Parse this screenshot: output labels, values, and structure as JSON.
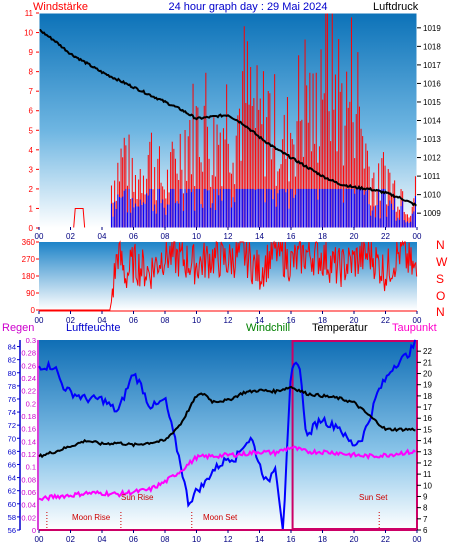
{
  "header": {
    "left": "Windstärke",
    "center": "24 hour graph day : 29 Mai 2024",
    "right": "Luftdruck"
  },
  "wind_dir_labels": [
    "N",
    "W",
    "S",
    "O",
    "N"
  ],
  "bottom_header": {
    "regen": "Regen",
    "luftfeuchte": "Luftfeuchte",
    "windchill": "Windchill",
    "temperatur": "Temperatur",
    "taupunkt": "Taupunkt"
  },
  "events": {
    "moon_rise": "Moon Rise",
    "sun_rise": "Sun Rise",
    "moon_set": "Moon Set",
    "sun_set": "Sun Set"
  },
  "colors": {
    "wind_speed": "#ff0000",
    "wind_gust_low": "#0000ff",
    "pressure": "#000000",
    "wind_dir": "#ff0000",
    "humidity": "#0000ff",
    "temperature": "#000000",
    "dewpoint": "#ff00ff",
    "rain_box": "#cc0066",
    "label_text": "#000080"
  },
  "chart_data": [
    {
      "type": "line",
      "series": [
        {
          "name": "Windstärke",
          "axis": "left",
          "x": [
            0,
            4,
            4.5,
            5,
            5.5,
            6,
            6.5,
            7,
            7.5,
            8,
            8.5,
            9,
            9.5,
            10,
            10.5,
            11,
            11.5,
            12,
            12.5,
            13,
            13.5,
            14,
            14.5,
            15,
            15.5,
            16,
            16.5,
            17,
            17.5,
            18,
            18.5,
            19,
            19.5,
            20,
            20.5,
            21,
            21.5,
            22,
            22.5,
            23,
            23.5,
            24
          ],
          "values": [
            0,
            0,
            2,
            3,
            4,
            2,
            3,
            4,
            3,
            2,
            3,
            4,
            5,
            5,
            6,
            4,
            5,
            6,
            5,
            7,
            6,
            5,
            6,
            5,
            4,
            5,
            6,
            7,
            5,
            9,
            8,
            7,
            6,
            8,
            5,
            3,
            2,
            3,
            2,
            2,
            1,
            2
          ]
        },
        {
          "name": "Luftdruck",
          "axis": "right",
          "x": [
            0,
            1,
            2,
            3,
            4,
            5,
            6,
            7,
            8,
            9,
            10,
            11,
            12,
            13,
            14,
            15,
            16,
            17,
            18,
            19,
            20,
            21,
            22,
            23,
            24
          ],
          "values": [
            1018.9,
            1018.3,
            1017.6,
            1017.1,
            1016.6,
            1016.2,
            1015.8,
            1015.4,
            1015,
            1014.6,
            1014.1,
            1014.2,
            1014.3,
            1013.8,
            1013.1,
            1012.5,
            1012,
            1011.5,
            1011,
            1010.6,
            1010.4,
            1010.3,
            1010.1,
            1009.8,
            1009.4
          ]
        }
      ],
      "x_ticks": [
        "00",
        "02",
        "04",
        "06",
        "08",
        "10",
        "12",
        "14",
        "16",
        "18",
        "20",
        "22",
        "00"
      ],
      "ylim_left": [
        0,
        11
      ],
      "ylim_right": [
        1008.2,
        1019.8
      ],
      "ticks_left": [
        0,
        1,
        2,
        3,
        4,
        5,
        6,
        7,
        8,
        9,
        10,
        11
      ],
      "ticks_right": [
        1009,
        1010,
        1011,
        1012,
        1013,
        1014,
        1015,
        1016,
        1017,
        1018,
        1019
      ]
    },
    {
      "type": "line",
      "series": [
        {
          "name": "Windrichtung",
          "x": [
            0,
            4.5,
            5,
            5.5,
            6,
            7,
            8,
            9,
            10,
            11,
            12,
            13,
            14,
            15,
            16,
            17,
            18,
            19,
            20,
            21,
            22,
            23,
            24
          ],
          "values": [
            0,
            0,
            310,
            180,
            250,
            200,
            300,
            270,
            240,
            280,
            260,
            300,
            200,
            320,
            250,
            300,
            280,
            220,
            260,
            300,
            200,
            320,
            180
          ]
        }
      ],
      "x_ticks": [
        "00",
        "02",
        "04",
        "06",
        "08",
        "10",
        "12",
        "14",
        "16",
        "18",
        "20",
        "22",
        "00"
      ],
      "ylim": [
        0,
        360
      ],
      "ticks": [
        0,
        90,
        180,
        270,
        360
      ]
    },
    {
      "type": "line",
      "series": [
        {
          "name": "Luftfeuchte",
          "axis": "humidity",
          "x": [
            0,
            1,
            1.5,
            2,
            3,
            4,
            5,
            5.5,
            6,
            6.5,
            7,
            7.5,
            8,
            8.5,
            9,
            9.5,
            10,
            10.5,
            11,
            11.5,
            12,
            12.5,
            13,
            13.5,
            14,
            14.5,
            15,
            15.5,
            16,
            16.5,
            17,
            17.5,
            18,
            18.5,
            19,
            19.5,
            20,
            20.5,
            21,
            21.5,
            22,
            22.5,
            23,
            23.5,
            24
          ],
          "values": [
            81,
            81,
            78,
            77,
            76,
            76,
            74,
            77,
            80,
            78,
            75,
            75,
            76,
            71,
            66,
            60,
            62,
            63,
            65,
            66,
            67,
            67,
            69,
            70,
            66,
            63,
            66,
            56,
            80,
            82,
            70,
            72,
            73,
            72,
            72,
            70,
            69,
            70,
            73,
            77,
            79,
            81,
            82,
            83,
            85
          ]
        },
        {
          "name": "Temperatur",
          "axis": "temp",
          "x": [
            0,
            1,
            2,
            3,
            4,
            5,
            6,
            7,
            8,
            9,
            10,
            10.5,
            11,
            12,
            13,
            14,
            15,
            16,
            16.5,
            17,
            18,
            19,
            20,
            21,
            22,
            23,
            24
          ],
          "values": [
            12.6,
            13,
            13.5,
            14,
            13.7,
            13.8,
            13.6,
            13.8,
            14,
            15.5,
            18,
            18.2,
            17.5,
            17.6,
            18.3,
            18.5,
            18.4,
            18.8,
            18.5,
            18.2,
            18,
            17.8,
            17.4,
            16.2,
            15,
            15,
            15
          ]
        },
        {
          "name": "Taupunkt",
          "axis": "temp",
          "x": [
            0,
            1,
            2,
            3,
            4,
            5,
            6,
            7,
            8,
            9,
            10,
            11,
            12,
            13,
            14,
            15,
            16,
            16.5,
            17,
            18,
            19,
            20,
            21,
            22,
            23,
            24
          ],
          "values": [
            8.7,
            9,
            9.1,
            9.3,
            9.3,
            9.2,
            9.4,
            9.6,
            10.3,
            11.3,
            12.5,
            12.6,
            12.7,
            12.8,
            13,
            12.9,
            13.4,
            13.2,
            13,
            13,
            12.9,
            12.7,
            12.6,
            12.7,
            12.9,
            13
          ]
        }
      ],
      "x_ticks": [
        "00",
        "02",
        "04",
        "06",
        "08",
        "10",
        "12",
        "14",
        "16",
        "18",
        "20",
        "22",
        "00"
      ],
      "ylim_humidity": [
        56,
        85
      ],
      "ticks_humidity": [
        56,
        58,
        60,
        62,
        64,
        66,
        68,
        70,
        72,
        74,
        76,
        78,
        80,
        82,
        84
      ],
      "ylim_rain": [
        0,
        0.3
      ],
      "ticks_rain": [
        0,
        0.02,
        0.04,
        0.06,
        0.08,
        0.1,
        0.12,
        0.14,
        0.16,
        0.18,
        0.2,
        0.22,
        0.24,
        0.26,
        0.28,
        0.3
      ],
      "ylim_temp": [
        6,
        23
      ],
      "ticks_temp": [
        6,
        7,
        8,
        9,
        10,
        11,
        12,
        13,
        14,
        15,
        16,
        17,
        18,
        19,
        20,
        21,
        22
      ],
      "rain_box_x": [
        16.1,
        24
      ],
      "event_times": {
        "moon_rise": 0.5,
        "sun_rise": 5.2,
        "moon_set": 9.7,
        "sun_set": 21.6
      }
    }
  ]
}
